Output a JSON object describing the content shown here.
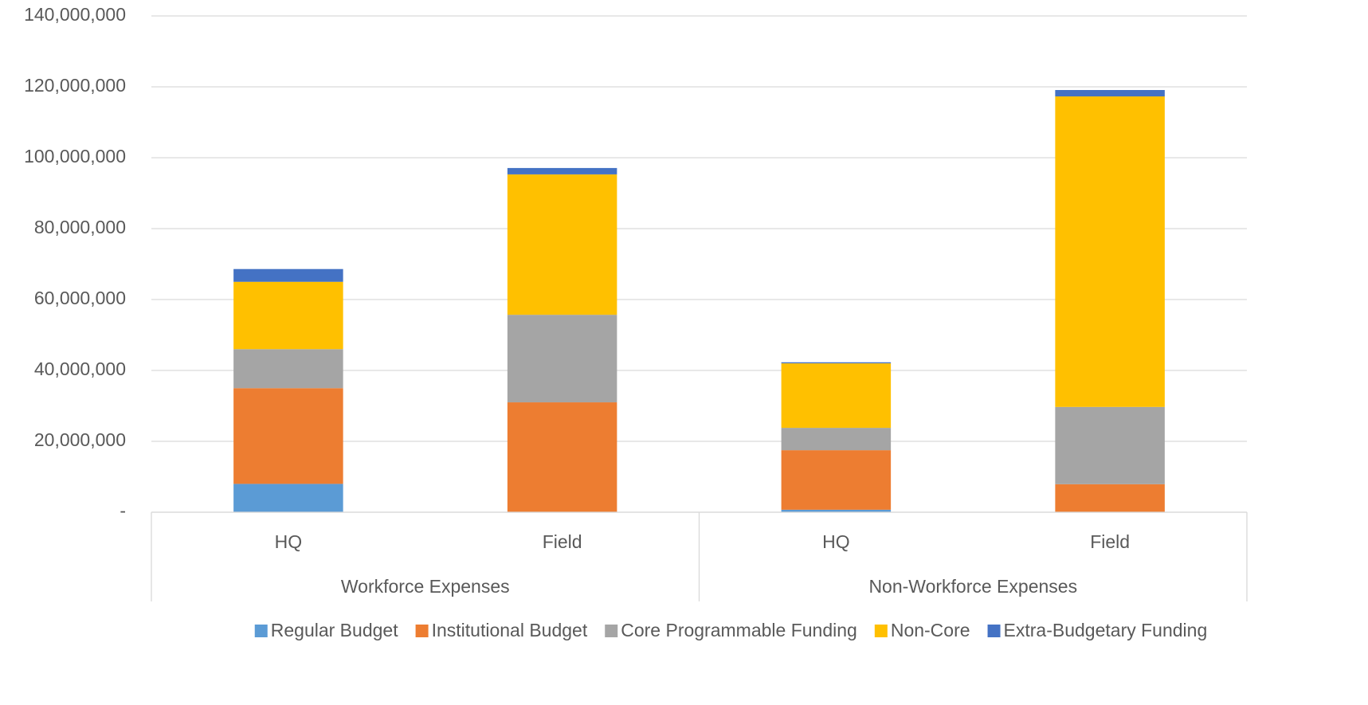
{
  "chart_data": {
    "type": "stacked_bar",
    "groups": [
      {
        "name": "Workforce Expenses",
        "categories": [
          "HQ",
          "Field"
        ]
      },
      {
        "name": "Non-Workforce Expenses",
        "categories": [
          "HQ",
          "Field"
        ]
      }
    ],
    "series": [
      {
        "name": "Regular Budget",
        "color": "#5b9bd5",
        "values": [
          8000000,
          0,
          700000,
          0
        ]
      },
      {
        "name": "Institutional Budget",
        "color": "#ed7d31",
        "values": [
          27000000,
          31000000,
          16800000,
          7900000
        ]
      },
      {
        "name": "Core Programmable Funding",
        "color": "#a5a5a5",
        "values": [
          11000000,
          24700000,
          6300000,
          21800000
        ]
      },
      {
        "name": "Non-Core",
        "color": "#ffc000",
        "values": [
          19000000,
          39600000,
          18200000,
          87600000
        ]
      },
      {
        "name": "Extra-Budgetary Funding",
        "color": "#4472c4",
        "values": [
          3600000,
          1800000,
          300000,
          1800000
        ]
      }
    ],
    "ylim": [
      0,
      140000000
    ],
    "yticks": [
      {
        "value": 0,
        "label": "-"
      },
      {
        "value": 20000000,
        "label": "20,000,000"
      },
      {
        "value": 40000000,
        "label": "40,000,000"
      },
      {
        "value": 60000000,
        "label": "60,000,000"
      },
      {
        "value": 80000000,
        "label": "80,000,000"
      },
      {
        "value": 100000000,
        "label": "100,000,000"
      },
      {
        "value": 120000000,
        "label": "120,000,000"
      },
      {
        "value": 140000000,
        "label": "140,000,000"
      }
    ],
    "grid": true,
    "legend": "bottom"
  }
}
